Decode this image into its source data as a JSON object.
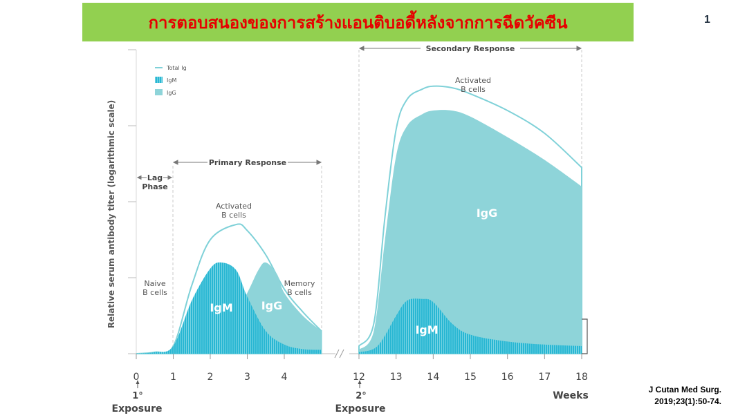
{
  "header": {
    "title": "การตอบสนองของการสร้างแอนติบอดี้หลังจากการฉีดวัคซีน",
    "page_number": "1"
  },
  "citation": {
    "line1": "J Cutan Med Surg.",
    "line2": "2019;23(1):50-74."
  },
  "colors": {
    "banner": "#92d050",
    "title": "#e60000",
    "igm": "#29b7d3",
    "igg": "#8ed4d9",
    "total_ig": "#7fd1d8"
  },
  "chart_data": {
    "type": "area",
    "ylabel": "Relative serum antibody titer (logarithmic scale)",
    "yscale": "log",
    "xlabel": "Weeks",
    "legend": {
      "placement": "top-left",
      "items": [
        {
          "label": "Total Ig",
          "style": "line"
        },
        {
          "label": "IgM",
          "style": "striped"
        },
        {
          "label": "IgG",
          "style": "solid"
        }
      ]
    },
    "panels": [
      {
        "name": "primary",
        "x_ticks": [
          "0",
          "1",
          "2",
          "3",
          "4"
        ],
        "x_range": [
          0,
          5
        ],
        "series": [
          {
            "name": "IgM",
            "x": [
              0,
              0.5,
              1,
              1.5,
              2,
              2.3,
              2.7,
              3,
              3.5,
              4,
              4.5,
              5
            ],
            "y": [
              0,
              0.02,
              0.1,
              0.7,
              1.12,
              1.2,
              1.1,
              0.75,
              0.3,
              0.12,
              0.06,
              0.05
            ]
          },
          {
            "name": "IgG",
            "x": [
              0,
              1,
              1.5,
              2,
              2.5,
              3,
              3.3,
              3.5,
              3.8,
              4,
              4.5,
              5
            ],
            "y": [
              0,
              0,
              0.05,
              0.1,
              0.35,
              0.8,
              1.1,
              1.2,
              1.05,
              0.8,
              0.5,
              0.3
            ]
          },
          {
            "name": "Total Ig",
            "x": [
              0,
              0.5,
              1,
              1.5,
              2,
              2.7,
              3,
              3.5,
              4,
              4.5,
              5
            ],
            "y": [
              0,
              0.02,
              0.1,
              0.9,
              1.5,
              1.7,
              1.62,
              1.3,
              0.85,
              0.55,
              0.3
            ]
          }
        ],
        "annotations": [
          {
            "text": "Naive B cells",
            "lines": [
              "Naive",
              "B cells"
            ]
          },
          {
            "text": "Activated B cells",
            "lines": [
              "Activated",
              "B cells"
            ]
          },
          {
            "text": "Memory B cells",
            "lines": [
              "Memory",
              "B cells"
            ]
          },
          {
            "text": "Lag Phase",
            "lines": [
              "Lag",
              "Phase"
            ]
          },
          {
            "text": "Primary Response"
          },
          {
            "text": "1° Exposure"
          }
        ]
      },
      {
        "name": "secondary",
        "x_ticks": [
          "12",
          "13",
          "14",
          "15",
          "16",
          "17",
          "18"
        ],
        "x_range": [
          12,
          18
        ],
        "series": [
          {
            "name": "IgM",
            "x": [
              12,
              12.5,
              13,
              13.3,
              13.7,
              14,
              14.5,
              15,
              16,
              17,
              18
            ],
            "y": [
              0.02,
              0.1,
              0.5,
              0.7,
              0.72,
              0.68,
              0.4,
              0.25,
              0.16,
              0.12,
              0.1
            ]
          },
          {
            "name": "IgG",
            "x": [
              12,
              12.4,
              12.7,
              13,
              13.3,
              13.7,
              14,
              14.5,
              15,
              16,
              17,
              18
            ],
            "y": [
              0.05,
              0.3,
              1.5,
              2.6,
              3.0,
              3.15,
              3.2,
              3.2,
              3.12,
              2.85,
              2.55,
              2.2
            ]
          },
          {
            "name": "Total Ig",
            "x": [
              12,
              12.4,
              12.7,
              13,
              13.3,
              13.7,
              14,
              14.5,
              15,
              16,
              17,
              18
            ],
            "y": [
              0.1,
              0.4,
              1.8,
              2.95,
              3.35,
              3.48,
              3.52,
              3.5,
              3.42,
              3.2,
              2.9,
              2.45
            ]
          }
        ],
        "annotations": [
          {
            "text": "Activated B cells",
            "lines": [
              "Activated",
              "B cells"
            ]
          },
          {
            "text": "Secondary Response"
          },
          {
            "text": "2° Exposure"
          }
        ]
      }
    ]
  }
}
